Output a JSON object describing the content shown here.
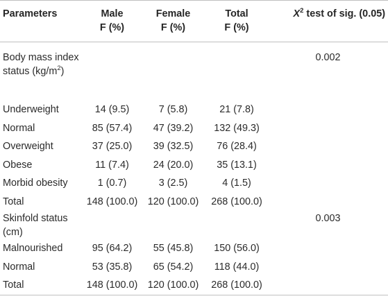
{
  "header": {
    "param": "Parameters",
    "male": "Male",
    "female": "Female",
    "total": "Total",
    "chi_symbol": "X",
    "chi_sup": "2",
    "chi_rest": " test of sig. (0.05)",
    "male_unit": "F (%)",
    "female_unit": "F (%)",
    "total_unit": "F (%)"
  },
  "sections": [
    {
      "label_main": "Body mass index status (kg/m",
      "label_sup": "2",
      "label_end": ")",
      "p_value": "0.002",
      "rows": [
        {
          "label": "Underweight",
          "male": "14 (9.5)",
          "female": "7 (5.8)",
          "total": "21 (7.8)"
        },
        {
          "label": "Normal",
          "male": "85 (57.4)",
          "female": "47 (39.2)",
          "total": "132 (49.3)"
        },
        {
          "label": "Overweight",
          "male": "37 (25.0)",
          "female": "39 (32.5)",
          "total": "76 (28.4)"
        },
        {
          "label": "Obese",
          "male": "11 (7.4)",
          "female": "24 (20.0)",
          "total": "35 (13.1)"
        },
        {
          "label": "Morbid obesity",
          "male": "1 (0.7)",
          "female": "3 (2.5)",
          "total": "4 (1.5)"
        },
        {
          "label": "Total",
          "male": "148 (100.0)",
          "female": "120 (100.0)",
          "total": "268 (100.0)"
        }
      ]
    },
    {
      "label_main": "Skinfold status (cm)",
      "label_sup": "",
      "label_end": "",
      "p_value": "0.003",
      "rows": [
        {
          "label": "Malnourished",
          "male": "95 (64.2)",
          "female": "55 (45.8)",
          "total": "150 (56.0)"
        },
        {
          "label": "Normal",
          "male": "53 (35.8)",
          "female": "65 (54.2)",
          "total": "118 (44.0)"
        },
        {
          "label": "Total",
          "male": "148 (100.0)",
          "female": "120 (100.0)",
          "total": "268 (100.0)"
        }
      ]
    }
  ]
}
